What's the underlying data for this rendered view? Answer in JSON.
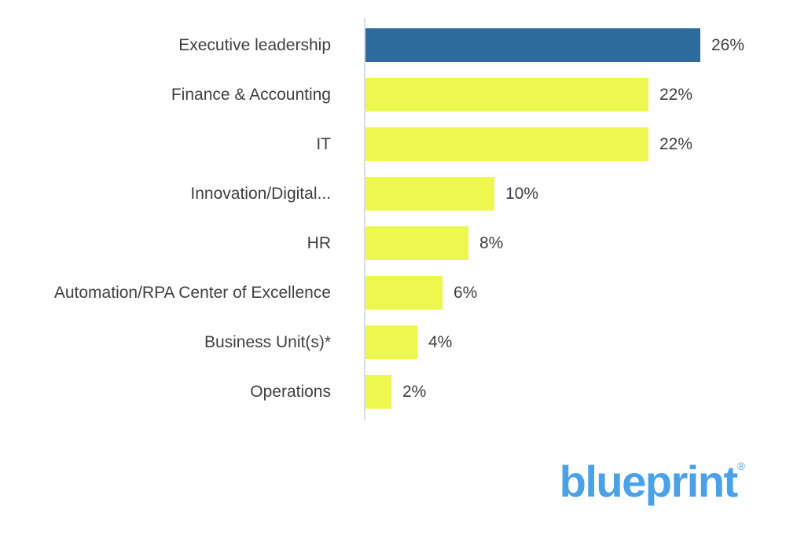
{
  "chart_data": {
    "type": "bar",
    "orientation": "horizontal",
    "categories": [
      "Executive leadership",
      "Finance & Accounting",
      "IT",
      "Innovation/Digital...",
      "HR",
      "Automation/RPA Center of Excellence",
      "Business Unit(s)*",
      "Operations"
    ],
    "values": [
      26,
      22,
      22,
      10,
      8,
      6,
      4,
      2
    ],
    "value_labels": [
      "26%",
      "22%",
      "22%",
      "10%",
      "8%",
      "6%",
      "4%",
      "2%"
    ],
    "unit": "%",
    "xlim": [
      0,
      26
    ],
    "title": "",
    "xlabel": "",
    "ylabel": "",
    "grid": false,
    "legend": false,
    "highlight_index": 0,
    "highlight_color": "#2e6b9d",
    "bar_color": "#edf84f"
  },
  "colors": {
    "axis_line": "#d9dde7",
    "label_text": "#3f3f3f",
    "logo_blue": "#4ba1e8"
  },
  "logo": {
    "text": "blueprint",
    "registered_mark": "®"
  }
}
